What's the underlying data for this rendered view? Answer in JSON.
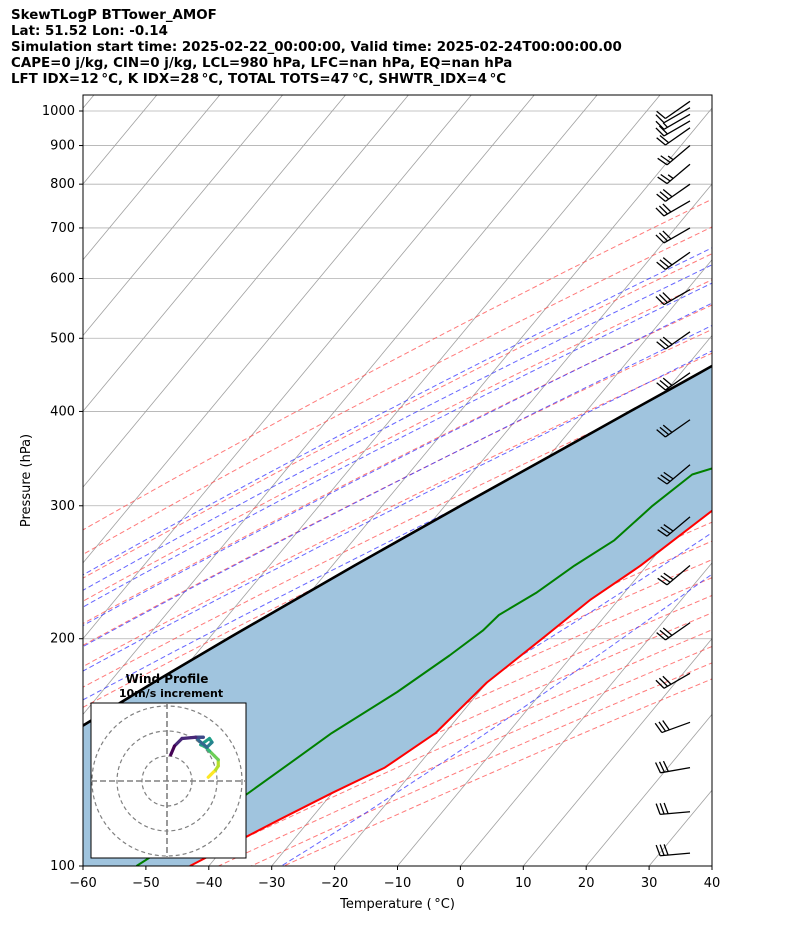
{
  "header": {
    "line1": "SkewTLogP BTTower_AMOF",
    "line2": "Lat: 51.52   Lon: -0.14",
    "line3": "Simulation start time: 2025-02-22_00:00:00, Valid time: 2025-02-24T00:00:00.00",
    "line4": "CAPE=0 j/kg, CIN=0 j/kg, LCL=980 hPa, LFC=nan hPa, EQ=nan hPa",
    "line5": "LFT IDX=12 °C, K IDX=28 °C, TOTAL TOTS=47 °C, SHWTR_IDX=4 °C"
  },
  "chart_data": {
    "type": "line",
    "subtype": "skew-T log-p diagram",
    "xlabel": "Temperature ( °C)",
    "ylabel": "Pressure (hPa)",
    "xlim": [
      -60,
      40
    ],
    "ylim": [
      1050,
      100
    ],
    "x_ticks": [
      -60,
      -50,
      -40,
      -30,
      -20,
      -10,
      0,
      10,
      20,
      30,
      40
    ],
    "x_tick_labels": [
      "−60",
      "−50",
      "−40",
      "−30",
      "−20",
      "−10",
      "0",
      "10",
      "20",
      "30",
      "40"
    ],
    "y_ticks": [
      1000,
      900,
      800,
      700,
      600,
      500,
      400,
      300,
      200,
      100
    ],
    "y_scale": "log",
    "grid": true,
    "colors": {
      "temperature": "#ff0000",
      "dewpoint": "#008000",
      "parcel": "#000000",
      "cin_shading": "#a0c4de",
      "dry_adiabats": "#ff4d4d",
      "moist_adiabats": "#3333ff",
      "mixing_ratio": "#9932cc",
      "isotherms": "#a0a0a0"
    },
    "series": [
      {
        "key": "temperature",
        "pressure": [
          1000,
          975,
          950,
          925,
          900,
          875,
          850,
          800,
          750,
          700,
          650,
          600,
          550,
          500,
          450,
          400,
          350,
          300,
          250,
          225,
          200,
          175,
          150,
          135,
          125,
          115,
          100
        ],
        "values": [
          10.0,
          9.0,
          11.0,
          11.5,
          11.6,
          10.8,
          9.7,
          8.4,
          7.5,
          6.3,
          5.2,
          4.1,
          2.8,
          1.7,
          1.2,
          -0.4,
          -2.5,
          -6.5,
          -11.0,
          -14.5,
          -17.0,
          -20.0,
          -21.5,
          -25.0,
          -30.0,
          -35.0,
          -43.0
        ]
      },
      {
        "key": "dewpoint",
        "pressure": [
          1000,
          975,
          950,
          925,
          900,
          875,
          850,
          800,
          750,
          700,
          650,
          600,
          550,
          500,
          450,
          400,
          370,
          340,
          330,
          300,
          270,
          250,
          230,
          215,
          205,
          190,
          170,
          150,
          140,
          120,
          100
        ],
        "values": [
          8.0,
          8.2,
          9.5,
          10.0,
          10.5,
          10.0,
          8.8,
          7.6,
          6.6,
          5.3,
          4.1,
          2.4,
          0.5,
          -1.7,
          -3.0,
          -4.8,
          -7.5,
          -11.0,
          -14.8,
          -17.0,
          -18.5,
          -21.5,
          -24.0,
          -27.0,
          -27.5,
          -29.5,
          -33.0,
          -38.0,
          -40.0,
          -44.5,
          -51.5
        ]
      },
      {
        "key": "parcel",
        "pressure": [
          1000,
          980,
          950,
          900,
          850,
          800,
          750,
          700,
          650,
          600,
          550,
          500,
          450,
          400,
          350,
          300,
          250,
          200,
          175,
          150,
          125,
          100
        ],
        "values": [
          10.0,
          8.6,
          7.8,
          5.4,
          2.9,
          0.1,
          -2.8,
          -5.8,
          -9.2,
          -13.0,
          -17.2,
          -21.9,
          -27.0,
          -33.0,
          -39.7,
          -47.5,
          -56.5,
          -67.0,
          -73.0,
          -79.5,
          -86.5,
          -94.0
        ]
      }
    ],
    "wind_barbs": {
      "pressure": [
        1030,
        1010,
        990,
        970,
        950,
        900,
        850,
        800,
        760,
        700,
        650,
        580,
        510,
        450,
        390,
        340,
        290,
        250,
        210,
        180,
        155,
        135,
        118,
        104
      ],
      "speed_kt": [
        10,
        10,
        15,
        20,
        20,
        25,
        25,
        30,
        30,
        30,
        30,
        30,
        30,
        30,
        30,
        30,
        30,
        30,
        30,
        30,
        30,
        30,
        30,
        30
      ],
      "direction_deg": [
        235,
        240,
        240,
        240,
        235,
        230,
        230,
        235,
        240,
        240,
        235,
        240,
        235,
        235,
        235,
        230,
        230,
        230,
        235,
        240,
        250,
        260,
        265,
        265
      ]
    },
    "hodograph": {
      "title": "Wind Profile",
      "subtitle": "10m/s increment",
      "ring_step_ms": 10,
      "rings": 3,
      "colormap": "viridis",
      "u": [
        16.5,
        17.5,
        19.5,
        20.5,
        20.5,
        19.0,
        17.0,
        15.5,
        13.5,
        17.0,
        18.0,
        17.5,
        16.0,
        13.5,
        11.5,
        14.5,
        11.5,
        6.0,
        3.0,
        1.5
      ],
      "v": [
        1.5,
        2.5,
        4.5,
        6.0,
        8.5,
        10.0,
        12.0,
        13.5,
        14.5,
        17.0,
        15.5,
        15.0,
        13.5,
        15.5,
        17.5,
        17.5,
        17.5,
        17.0,
        14.0,
        10.5
      ]
    }
  }
}
